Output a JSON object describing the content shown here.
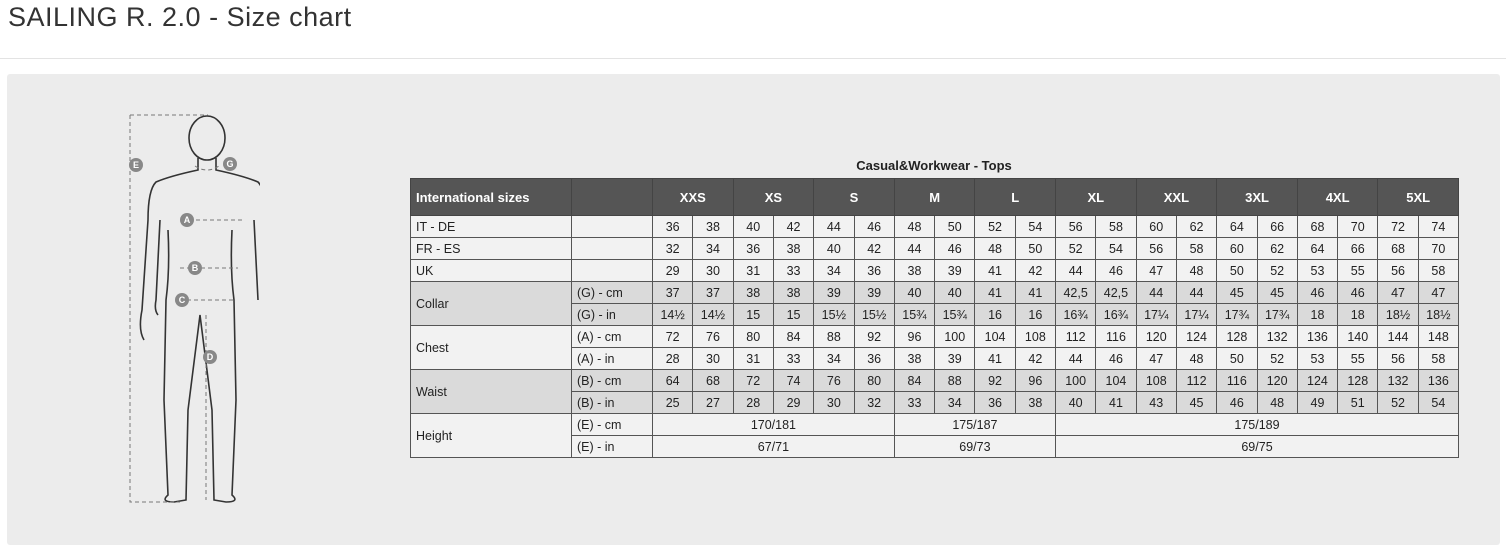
{
  "page_title": "SAILING R. 2.0 - Size chart",
  "figure": {
    "labels": [
      "E",
      "G",
      "A",
      "B",
      "C",
      "D"
    ]
  },
  "table": {
    "title": "Casual&Workwear - Tops",
    "header_label": "International sizes",
    "sizes": [
      "XXS",
      "XS",
      "S",
      "M",
      "L",
      "XL",
      "XXL",
      "3XL",
      "4XL",
      "5XL"
    ],
    "rows": [
      {
        "group": "IT - DE",
        "unit": "",
        "shade": false,
        "values": [
          "36",
          "38",
          "40",
          "42",
          "44",
          "46",
          "48",
          "50",
          "52",
          "54",
          "56",
          "58",
          "60",
          "62",
          "64",
          "66",
          "68",
          "70",
          "72",
          "74"
        ]
      },
      {
        "group": "FR - ES",
        "unit": "",
        "shade": false,
        "values": [
          "32",
          "34",
          "36",
          "38",
          "40",
          "42",
          "44",
          "46",
          "48",
          "50",
          "52",
          "54",
          "56",
          "58",
          "60",
          "62",
          "64",
          "66",
          "68",
          "70"
        ]
      },
      {
        "group": "UK",
        "unit": "",
        "shade": false,
        "values": [
          "29",
          "30",
          "31",
          "33",
          "34",
          "36",
          "38",
          "39",
          "41",
          "42",
          "44",
          "46",
          "47",
          "48",
          "50",
          "52",
          "53",
          "55",
          "56",
          "58"
        ]
      },
      {
        "group": "Collar",
        "unit": "(G) - cm",
        "shade": true,
        "values": [
          "37",
          "37",
          "38",
          "38",
          "39",
          "39",
          "40",
          "40",
          "41",
          "41",
          "42,5",
          "42,5",
          "44",
          "44",
          "45",
          "45",
          "46",
          "46",
          "47",
          "47"
        ]
      },
      {
        "group": "",
        "unit": "(G)  - in",
        "shade": true,
        "values": [
          "14½",
          "14½",
          "15",
          "15",
          "15½",
          "15½",
          "15¾",
          "15¾",
          "16",
          "16",
          "16¾",
          "16¾",
          "17¼",
          "17¼",
          "17¾",
          "17¾",
          "18",
          "18",
          "18½",
          "18½"
        ]
      },
      {
        "group": "Chest",
        "unit": "(A) - cm",
        "shade": false,
        "values": [
          "72",
          "76",
          "80",
          "84",
          "88",
          "92",
          "96",
          "100",
          "104",
          "108",
          "112",
          "116",
          "120",
          "124",
          "128",
          "132",
          "136",
          "140",
          "144",
          "148"
        ]
      },
      {
        "group": "",
        "unit": "(A) - in",
        "shade": false,
        "values": [
          "28",
          "30",
          "31",
          "33",
          "34",
          "36",
          "38",
          "39",
          "41",
          "42",
          "44",
          "46",
          "47",
          "48",
          "50",
          "52",
          "53",
          "55",
          "56",
          "58"
        ]
      },
      {
        "group": "Waist",
        "unit": "(B) - cm",
        "shade": true,
        "values": [
          "64",
          "68",
          "72",
          "74",
          "76",
          "80",
          "84",
          "88",
          "92",
          "96",
          "100",
          "104",
          "108",
          "112",
          "116",
          "120",
          "124",
          "128",
          "132",
          "136"
        ]
      },
      {
        "group": "",
        "unit": "(B) - in",
        "shade": true,
        "values": [
          "25",
          "27",
          "28",
          "29",
          "30",
          "32",
          "33",
          "34",
          "36",
          "38",
          "40",
          "41",
          "43",
          "45",
          "46",
          "48",
          "49",
          "51",
          "52",
          "54"
        ]
      }
    ],
    "height": {
      "group": "Height",
      "rows": [
        {
          "unit": "(E) - cm",
          "spans": [
            {
              "cols": 6,
              "value": "170/181"
            },
            {
              "cols": 4,
              "value": "175/187"
            },
            {
              "cols": 10,
              "value": "175/189"
            }
          ]
        },
        {
          "unit": "(E) - in",
          "spans": [
            {
              "cols": 6,
              "value": "67/71"
            },
            {
              "cols": 4,
              "value": "69/73"
            },
            {
              "cols": 10,
              "value": "69/75"
            }
          ]
        }
      ]
    }
  }
}
